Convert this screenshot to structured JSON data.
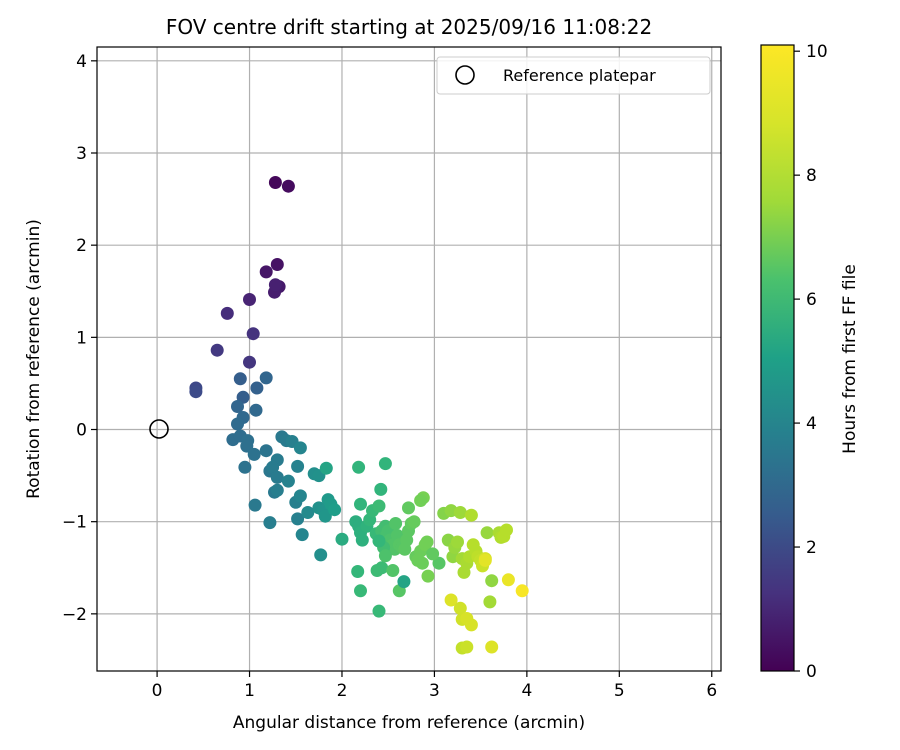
{
  "chart_data": {
    "type": "scatter",
    "title": "FOV centre drift starting at 2025/09/16 11:08:22",
    "xlabel": "Angular distance from reference (arcmin)",
    "ylabel": "Rotation from reference (arcmin)",
    "xlim": [
      -0.65,
      6.1
    ],
    "ylim": [
      -2.62,
      4.15
    ],
    "xticks": [
      0,
      1,
      2,
      3,
      4,
      5,
      6
    ],
    "yticks": [
      -2,
      -1,
      0,
      1,
      2,
      3,
      4
    ],
    "xtick_labels": [
      "0",
      "1",
      "2",
      "3",
      "4",
      "5",
      "6"
    ],
    "ytick_labels": [
      "−2",
      "−1",
      "0",
      "1",
      "2",
      "3",
      "4"
    ],
    "grid": true,
    "legend": {
      "position": "top-right",
      "entries": [
        "Reference platepar"
      ]
    },
    "reference_point": {
      "label": "Reference platepar",
      "x": 0,
      "y": 0
    },
    "colorbar": {
      "label": "Hours from first FF file",
      "range": [
        0,
        10.1
      ],
      "ticks": [
        0,
        2,
        4,
        6,
        8,
        10
      ],
      "tick_labels": [
        "0",
        "2",
        "4",
        "6",
        "8",
        "10"
      ],
      "colormap": "viridis"
    },
    "series": [
      {
        "name": "FOV centre drift",
        "points": [
          [
            1.28,
            2.68,
            0.2
          ],
          [
            1.42,
            2.64,
            0.3
          ],
          [
            1.3,
            1.79,
            0.5
          ],
          [
            1.18,
            1.71,
            0.6
          ],
          [
            1.32,
            1.55,
            0.7
          ],
          [
            1.27,
            1.49,
            0.8
          ],
          [
            1.28,
            1.57,
            0.9
          ],
          [
            1.0,
            1.41,
            1.0
          ],
          [
            0.76,
            1.26,
            1.3
          ],
          [
            1.04,
            1.04,
            1.5
          ],
          [
            0.65,
            0.86,
            1.7
          ],
          [
            1.0,
            0.73,
            1.6
          ],
          [
            0.42,
            0.45,
            2.2
          ],
          [
            0.42,
            0.41,
            2.3
          ],
          [
            0.9,
            0.55,
            3.0
          ],
          [
            1.08,
            0.45,
            3.1
          ],
          [
            0.93,
            0.35,
            3.0
          ],
          [
            1.18,
            0.56,
            3.3
          ],
          [
            0.87,
            0.25,
            3.3
          ],
          [
            1.07,
            0.21,
            3.4
          ],
          [
            0.93,
            0.13,
            3.4
          ],
          [
            0.87,
            0.06,
            3.5
          ],
          [
            0.82,
            -0.11,
            3.6
          ],
          [
            0.9,
            -0.07,
            3.6
          ],
          [
            0.98,
            -0.12,
            3.7
          ],
          [
            0.97,
            -0.18,
            3.7
          ],
          [
            1.05,
            -0.27,
            3.8
          ],
          [
            0.95,
            -0.41,
            3.8
          ],
          [
            1.18,
            -0.23,
            3.9
          ],
          [
            1.22,
            -0.45,
            4.0
          ],
          [
            1.3,
            -0.33,
            4.2
          ],
          [
            1.35,
            -0.08,
            4.1
          ],
          [
            1.4,
            -0.12,
            4.2
          ],
          [
            1.46,
            -0.13,
            4.4
          ],
          [
            1.25,
            -0.41,
            4.2
          ],
          [
            1.3,
            -0.52,
            4.2
          ],
          [
            1.27,
            -0.68,
            4.1
          ],
          [
            1.3,
            -0.66,
            4.3
          ],
          [
            1.42,
            -0.56,
            4.5
          ],
          [
            1.52,
            -0.4,
            4.5
          ],
          [
            1.55,
            -0.2,
            4.6
          ],
          [
            1.5,
            -0.79,
            4.4
          ],
          [
            1.55,
            -0.72,
            4.6
          ],
          [
            1.52,
            -0.97,
            4.4
          ],
          [
            1.57,
            -1.14,
            4.6
          ],
          [
            1.63,
            -0.9,
            4.8
          ],
          [
            1.7,
            -0.48,
            5.0
          ],
          [
            1.75,
            -0.5,
            5.1
          ],
          [
            1.75,
            -0.85,
            5.1
          ],
          [
            1.8,
            -0.88,
            5.2
          ],
          [
            1.82,
            -0.94,
            5.3
          ],
          [
            1.85,
            -0.76,
            5.4
          ],
          [
            1.88,
            -0.81,
            5.5
          ],
          [
            1.92,
            -0.87,
            5.6
          ],
          [
            1.83,
            -0.42,
            5.9
          ],
          [
            1.06,
            -0.82,
            4.1
          ],
          [
            1.22,
            -1.01,
            4.3
          ],
          [
            1.77,
            -1.36,
            5.0
          ],
          [
            2.0,
            -1.19,
            6.2
          ],
          [
            2.15,
            -1.0,
            6.3
          ],
          [
            2.18,
            -1.05,
            6.3
          ],
          [
            2.2,
            -1.12,
            6.4
          ],
          [
            2.22,
            -1.2,
            6.4
          ],
          [
            2.27,
            -1.05,
            6.5
          ],
          [
            2.2,
            -0.81,
            6.6
          ],
          [
            2.18,
            -0.41,
            6.6
          ],
          [
            2.3,
            -0.98,
            6.7
          ],
          [
            2.33,
            -0.88,
            6.8
          ],
          [
            2.37,
            -1.13,
            6.8
          ],
          [
            2.4,
            -0.83,
            6.9
          ],
          [
            2.43,
            -1.1,
            7.0
          ],
          [
            2.45,
            -1.2,
            7.0
          ],
          [
            2.47,
            -1.05,
            7.0
          ],
          [
            2.48,
            -1.15,
            7.1
          ],
          [
            2.5,
            -1.1,
            7.1
          ],
          [
            2.52,
            -1.2,
            7.2
          ],
          [
            2.55,
            -1.25,
            7.3
          ],
          [
            2.57,
            -1.3,
            7.3
          ],
          [
            2.58,
            -1.02,
            7.3
          ],
          [
            2.6,
            -1.15,
            7.3
          ],
          [
            2.62,
            -1.25,
            7.4
          ],
          [
            2.65,
            -1.28,
            7.4
          ],
          [
            2.68,
            -1.3,
            7.5
          ],
          [
            2.7,
            -1.2,
            7.5
          ],
          [
            2.72,
            -1.1,
            7.5
          ],
          [
            2.75,
            -1.02,
            7.6
          ],
          [
            2.78,
            -1.0,
            7.7
          ],
          [
            2.8,
            -1.38,
            7.7
          ],
          [
            2.82,
            -1.42,
            7.8
          ],
          [
            2.85,
            -1.32,
            7.8
          ],
          [
            2.87,
            -1.45,
            7.8
          ],
          [
            2.9,
            -1.25,
            7.9
          ],
          [
            2.92,
            -1.22,
            7.9
          ],
          [
            2.93,
            -1.59,
            8.0
          ],
          [
            2.88,
            -0.74,
            8.0
          ],
          [
            2.85,
            -0.77,
            7.9
          ],
          [
            2.72,
            -0.85,
            7.6
          ],
          [
            2.45,
            -1.28,
            7.0
          ],
          [
            2.43,
            -1.5,
            6.9
          ],
          [
            2.4,
            -1.97,
            6.8
          ],
          [
            2.38,
            -1.53,
            6.9
          ],
          [
            2.4,
            -1.21,
            6.7
          ],
          [
            2.42,
            -0.65,
            6.6
          ],
          [
            2.47,
            -0.37,
            6.6
          ],
          [
            2.47,
            -1.37,
            7.2
          ],
          [
            2.55,
            -1.53,
            7.3
          ],
          [
            2.62,
            -1.75,
            7.4
          ],
          [
            2.67,
            -1.65,
            5.9
          ],
          [
            2.17,
            -1.54,
            6.7
          ],
          [
            2.2,
            -1.75,
            6.8
          ],
          [
            3.1,
            -0.91,
            8.2
          ],
          [
            3.15,
            -1.2,
            8.3
          ],
          [
            3.18,
            -0.88,
            8.4
          ],
          [
            3.2,
            -1.38,
            8.4
          ],
          [
            3.22,
            -1.28,
            8.5
          ],
          [
            3.25,
            -1.22,
            8.6
          ],
          [
            3.28,
            -0.9,
            8.6
          ],
          [
            3.3,
            -1.4,
            8.7
          ],
          [
            3.32,
            -1.55,
            8.8
          ],
          [
            3.35,
            -1.45,
            8.8
          ],
          [
            3.38,
            -1.38,
            8.9
          ],
          [
            3.4,
            -0.93,
            8.9
          ],
          [
            3.42,
            -1.25,
            9.0
          ],
          [
            3.45,
            -1.32,
            9.0
          ],
          [
            3.47,
            -1.38,
            9.1
          ],
          [
            3.5,
            -1.42,
            9.2
          ],
          [
            3.52,
            -1.48,
            9.3
          ],
          [
            3.55,
            -1.4,
            9.5
          ],
          [
            3.57,
            -1.12,
            8.5
          ],
          [
            3.6,
            -1.87,
            8.7
          ],
          [
            3.62,
            -1.64,
            8.4
          ],
          [
            3.7,
            -1.12,
            8.8
          ],
          [
            3.72,
            -1.17,
            8.9
          ],
          [
            3.75,
            -1.16,
            9.0
          ],
          [
            3.78,
            -1.09,
            9.0
          ],
          [
            3.18,
            -1.85,
            9.6
          ],
          [
            3.28,
            -1.94,
            9.4
          ],
          [
            3.3,
            -2.06,
            9.4
          ],
          [
            3.35,
            -2.05,
            9.5
          ],
          [
            3.4,
            -2.12,
            9.5
          ],
          [
            3.3,
            -2.37,
            9.2
          ],
          [
            3.35,
            -2.36,
            9.3
          ],
          [
            3.62,
            -2.36,
            9.6
          ],
          [
            3.8,
            -1.63,
            9.8
          ],
          [
            3.95,
            -1.75,
            10.0
          ],
          [
            3.55,
            -1.42,
            9.7
          ],
          [
            3.05,
            -1.45,
            7.4
          ],
          [
            2.98,
            -1.35,
            7.6
          ]
        ]
      }
    ]
  }
}
